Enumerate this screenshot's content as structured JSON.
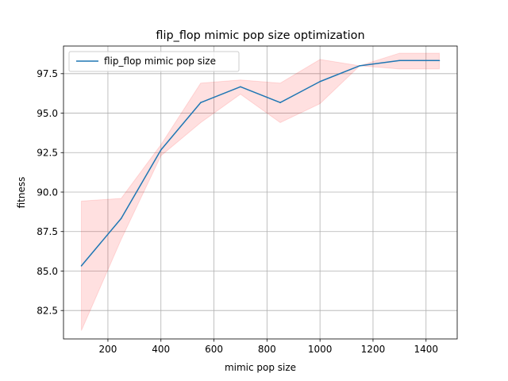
{
  "chart_data": {
    "type": "line",
    "title": "flip_flop mimic pop size optimization",
    "xlabel": "mimic pop size",
    "ylabel": "fitness",
    "xlim": [
      32.5,
      1517.5
    ],
    "ylim": [
      80.7,
      99.25
    ],
    "xticks": [
      {
        "value": 200,
        "label": "200"
      },
      {
        "value": 400,
        "label": "400"
      },
      {
        "value": 600,
        "label": "600"
      },
      {
        "value": 800,
        "label": "800"
      },
      {
        "value": 1000,
        "label": "1000"
      },
      {
        "value": 1200,
        "label": "1200"
      },
      {
        "value": 1400,
        "label": "1400"
      }
    ],
    "yticks": [
      {
        "value": 82.5,
        "label": "82.5"
      },
      {
        "value": 85.0,
        "label": "85.0"
      },
      {
        "value": 87.5,
        "label": "87.5"
      },
      {
        "value": 90.0,
        "label": "90.0"
      },
      {
        "value": 92.5,
        "label": "92.5"
      },
      {
        "value": 95.0,
        "label": "95.0"
      },
      {
        "value": 97.5,
        "label": "97.5"
      }
    ],
    "grid": true,
    "legend_position": "top-left",
    "series": [
      {
        "name": "flip_flop mimic pop size",
        "color": "#1f77b4",
        "x": [
          100,
          250,
          400,
          550,
          700,
          850,
          1000,
          1150,
          1300,
          1450
        ],
        "y": [
          85.33,
          88.33,
          92.67,
          95.67,
          96.67,
          95.67,
          97.0,
          98.0,
          98.33,
          98.33
        ],
        "band_lower": [
          81.23,
          87.0,
          92.3,
          94.4,
          96.2,
          94.4,
          95.6,
          98.0,
          97.8,
          97.8
        ],
        "band_upper": [
          89.43,
          89.6,
          93.0,
          96.9,
          97.1,
          96.9,
          98.4,
          98.0,
          98.8,
          98.8
        ],
        "band_color": "#ff0000"
      }
    ]
  }
}
